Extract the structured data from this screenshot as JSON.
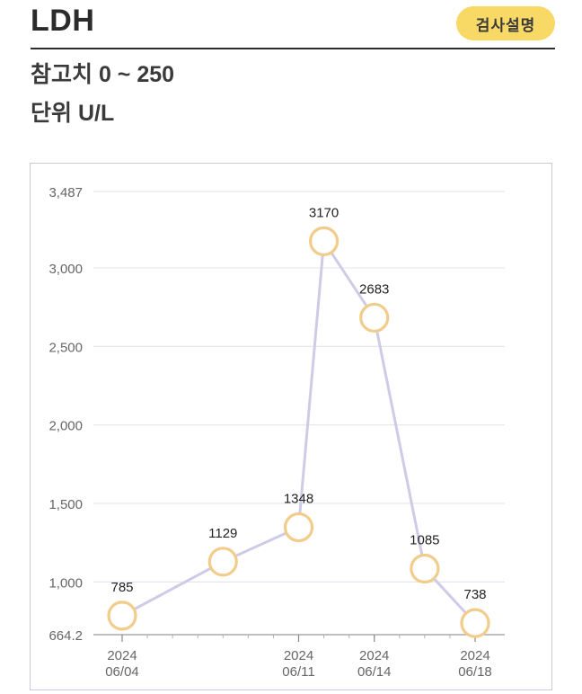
{
  "header": {
    "title": "LDH",
    "guide_button": "검사설명",
    "reference_label": "참고치 0 ~ 250",
    "unit_label": "단위 U/L"
  },
  "colors": {
    "accent": "#f8d966",
    "point_stroke": "#f2cc8a",
    "line": "#cfcbe6",
    "grid": "#e6e6ee",
    "border": "#c9c9dc"
  },
  "chart_data": {
    "type": "line",
    "x": [
      "2024-06-04",
      "2024-06-08",
      "2024-06-11",
      "2024-06-12",
      "2024-06-14",
      "2024-06-16",
      "2024-06-18"
    ],
    "values": [
      785,
      1129,
      1348,
      3170,
      2683,
      1085,
      738
    ],
    "data_labels": [
      "785",
      "1129",
      "1348",
      "3170",
      "2683",
      "1085",
      "738"
    ],
    "ylim": [
      664.2,
      3487
    ],
    "yticks": [
      664.2,
      1000,
      1500,
      2000,
      2500,
      3000,
      3487
    ],
    "ytick_labels": [
      "664.2",
      "1,000",
      "1,500",
      "2,000",
      "2,500",
      "3,000",
      "3,487"
    ],
    "xticks": [
      {
        "line1": "2024",
        "line2": "06/04",
        "index": 0
      },
      {
        "line1": "2024",
        "line2": "06/11",
        "index": 2
      },
      {
        "line1": "2024",
        "line2": "06/14",
        "index": 4
      },
      {
        "line1": "2024",
        "line2": "06/18",
        "index": 6
      }
    ],
    "grid": true,
    "legend": false
  }
}
